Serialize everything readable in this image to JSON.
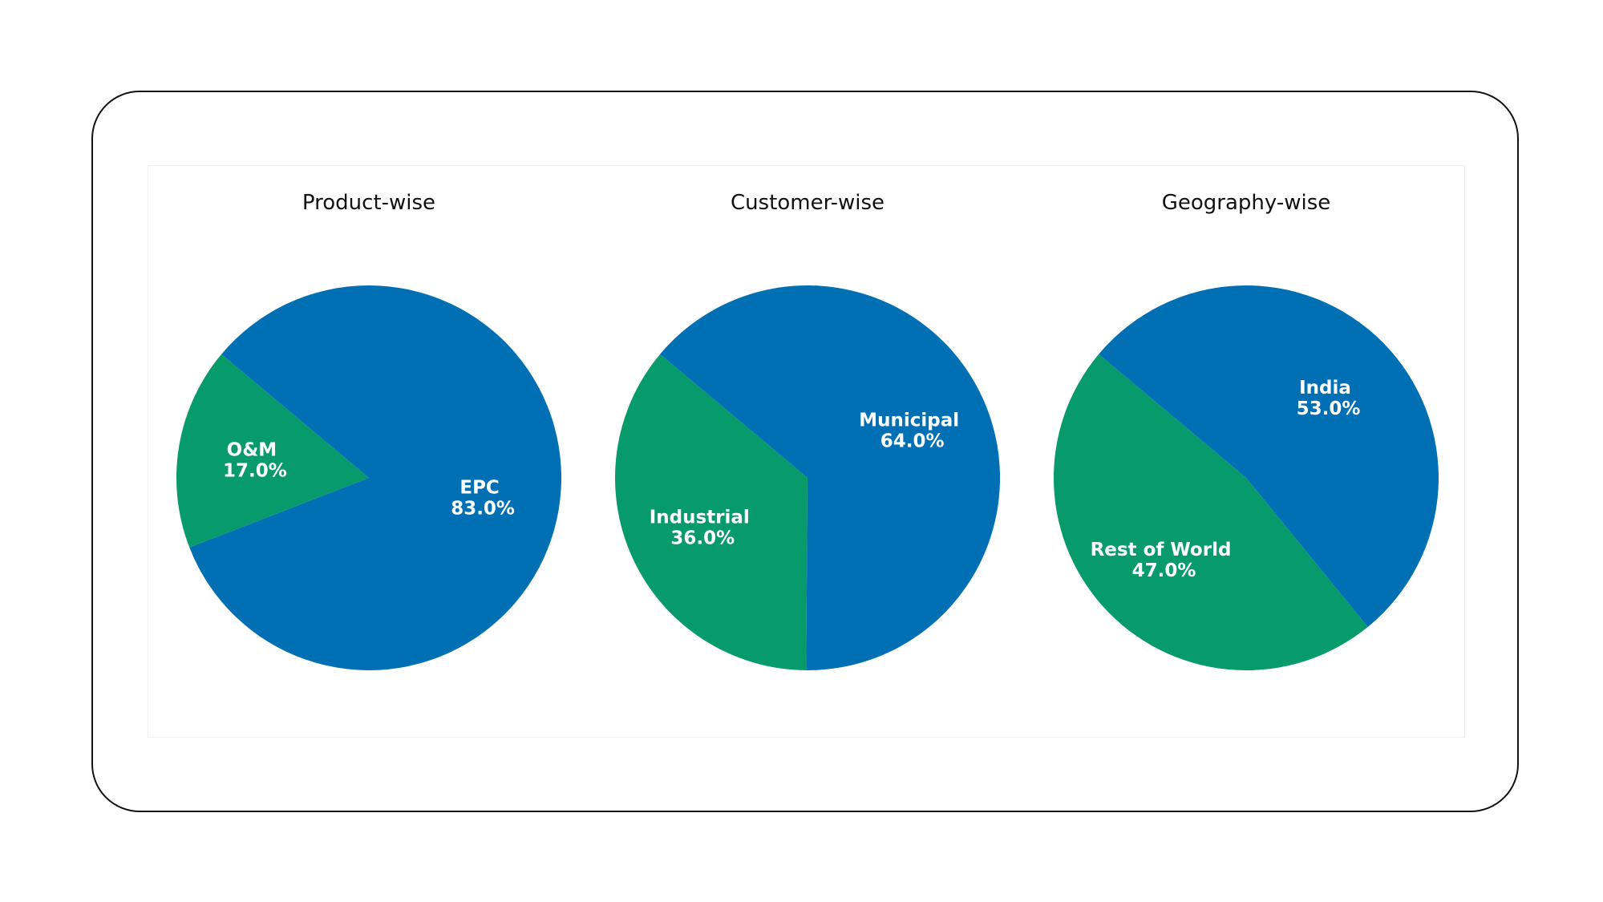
{
  "colors": {
    "green": "#079b6c",
    "blue": "#006fb4"
  },
  "chart_data": [
    {
      "type": "pie",
      "title": "Product-wise",
      "slices": [
        {
          "label": "O&M",
          "value": 17.0,
          "pct_label": "17.0%",
          "color": "#079b6c"
        },
        {
          "label": "EPC",
          "value": 83.0,
          "pct_label": "83.0%",
          "color": "#006fb4"
        }
      ]
    },
    {
      "type": "pie",
      "title": "Customer-wise",
      "slices": [
        {
          "label": "Industrial",
          "value": 36.0,
          "pct_label": "36.0%",
          "color": "#079b6c"
        },
        {
          "label": "Municipal",
          "value": 64.0,
          "pct_label": "64.0%",
          "color": "#006fb4"
        }
      ]
    },
    {
      "type": "pie",
      "title": "Geography-wise",
      "slices": [
        {
          "label": "Rest of World",
          "value": 47.0,
          "pct_label": "47.0%",
          "color": "#079b6c"
        },
        {
          "label": "India",
          "value": 53.0,
          "pct_label": "53.0%",
          "color": "#006fb4"
        }
      ]
    }
  ]
}
